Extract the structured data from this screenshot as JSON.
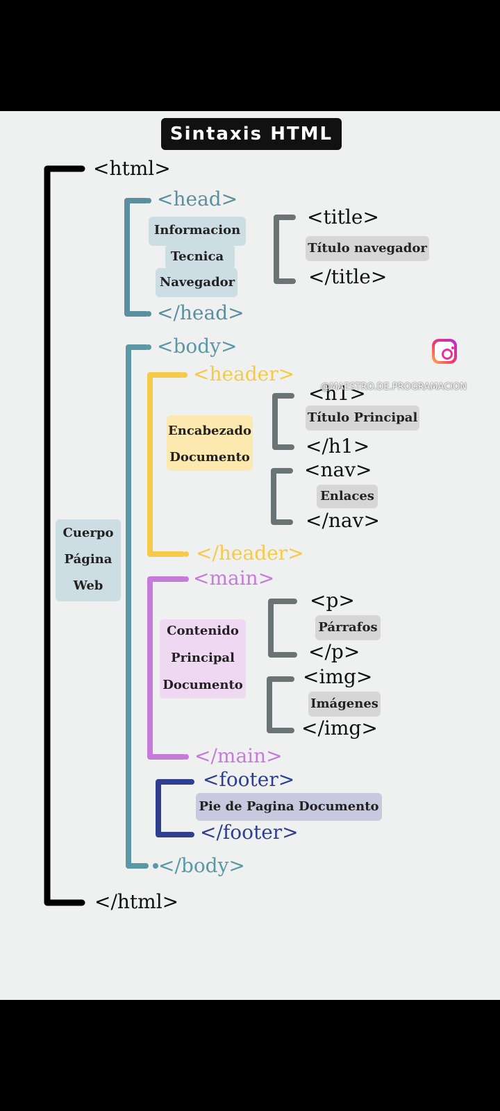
{
  "title": "Sintaxis HTML",
  "watermark": "@MAESTRO.DE.PROGRAMACION",
  "icons": {
    "instagram": "instagram-icon"
  },
  "colors": {
    "html": "#000000",
    "head": "#5b8fa0",
    "body": "#5b98a6",
    "header": "#f7c948",
    "main": "#c57bd9",
    "footer": "#2f3f8f",
    "inner_bracket": "#6b7474",
    "label_head": "#ccdde3",
    "label_header": "#fbe9b0",
    "label_main": "#efd9f2",
    "label_footer": "#c7cadf",
    "label_gray": "#d6d6d6"
  },
  "html": {
    "open": "<html>",
    "close": "</html>",
    "label": [
      "Cuerpo",
      "Página",
      "Web"
    ]
  },
  "head": {
    "open": "<head>",
    "close": "</head>",
    "label": [
      "Informacion",
      "Tecnica",
      "Navegador"
    ],
    "title": {
      "open": "<title>",
      "close": "</title>",
      "label": "Título navegador"
    }
  },
  "body": {
    "open": "<body>",
    "close": "</body>",
    "header": {
      "open": "<header>",
      "close": "</header>",
      "label": [
        "Encabezado",
        "Documento"
      ],
      "h1": {
        "open": "<h1>",
        "close": "</h1>",
        "label": "Título Principal"
      },
      "nav": {
        "open": "<nav>",
        "close": "</nav>",
        "label": "Enlaces"
      }
    },
    "main": {
      "open": "<main>",
      "close": "</main>",
      "label": [
        "Contenido",
        "Principal",
        "Documento"
      ],
      "p": {
        "open": "<p>",
        "close": "</p>",
        "label": "Párrafos"
      },
      "img": {
        "open": "<img>",
        "close": "</img>",
        "label": "Imágenes"
      }
    },
    "footer": {
      "open": "<footer>",
      "close": "</footer>",
      "label": "Pie de Pagina Documento"
    }
  }
}
